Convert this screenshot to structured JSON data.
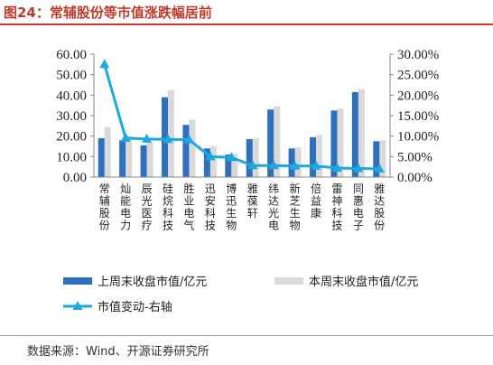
{
  "header": {
    "title": "图24：常辅股份等市值涨跌幅居前"
  },
  "footer": {
    "source": "数据来源：Wind、开源证券研究所"
  },
  "colors": {
    "prev_bar": "#2e6fbe",
    "curr_bar": "#d9d9d9",
    "line": "#1ba9e0"
  },
  "chart_data": {
    "type": "bar",
    "categories": [
      "常辅股份",
      "灿能电力",
      "辰光医疗",
      "硅烷科技",
      "胜业电气",
      "迅安科技",
      "博迅生物",
      "雅葆轩",
      "纬达光电",
      "新芝生物",
      "倍益康",
      "雷神科技",
      "同惠电子",
      "雅达股份"
    ],
    "series": [
      {
        "name": "上周末收盘市值/亿元",
        "axis": "left",
        "values": [
          19.0,
          18.0,
          15.5,
          39.0,
          25.5,
          14.0,
          11.0,
          18.5,
          33.0,
          14.0,
          19.5,
          32.5,
          41.5,
          17.5
        ]
      },
      {
        "name": "本周末收盘市值/亿元",
        "axis": "left",
        "values": [
          24.5,
          20.0,
          17.0,
          42.5,
          28.0,
          15.0,
          11.5,
          19.0,
          34.5,
          14.5,
          20.5,
          33.5,
          43.0,
          18.0
        ]
      },
      {
        "name": "市值变动-右轴",
        "axis": "right",
        "type": "line",
        "values": [
          27.5,
          9.5,
          9.3,
          9.2,
          9.1,
          5.0,
          4.8,
          2.8,
          2.8,
          2.7,
          2.7,
          2.2,
          2.1,
          2.0
        ]
      }
    ],
    "y_left": {
      "ticks": [
        "0.00",
        "10.00",
        "20.00",
        "30.00",
        "40.00",
        "50.00",
        "60.00"
      ],
      "ylim": [
        0,
        60
      ]
    },
    "y_right": {
      "ticks": [
        "0.00%",
        "5.00%",
        "10.00%",
        "15.00%",
        "20.00%",
        "25.00%",
        "30.00%"
      ],
      "ylim": [
        0,
        30
      ]
    },
    "grid": false,
    "legend_position": "bottom"
  }
}
